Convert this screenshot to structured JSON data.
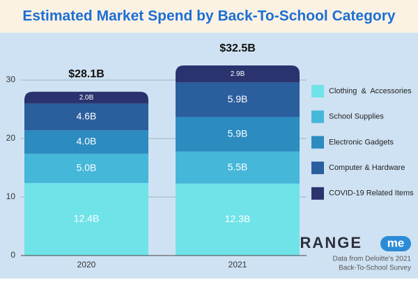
{
  "chart_data": {
    "type": "stacked-bar",
    "title": "Estimated Market Spend by Back-To-School Category",
    "categories": [
      "2020",
      "2021"
    ],
    "series": [
      {
        "name": "Clothing  &  Accessories",
        "color": "#6fe3e8",
        "values": [
          12.4,
          12.3
        ],
        "value_labels": [
          "12.4B",
          "12.3B"
        ]
      },
      {
        "name": "School Supplies",
        "color": "#45b7d9",
        "values": [
          5.0,
          5.5
        ],
        "value_labels": [
          "5.0B",
          "5.5B"
        ]
      },
      {
        "name": "Electronic Gadgets",
        "color": "#2c8bbf",
        "values": [
          4.0,
          5.9
        ],
        "value_labels": [
          "4.0B",
          "5.9B"
        ]
      },
      {
        "name": "Computer & Hardware",
        "color": "#2a5e9d",
        "values": [
          4.6,
          5.9
        ],
        "value_labels": [
          "4.6B",
          "5.9B"
        ]
      },
      {
        "name": "COVID-19 Related Items",
        "color": "#2b336e",
        "values": [
          2.0,
          2.9
        ],
        "value_labels": [
          "2.0B",
          "2.9B"
        ]
      }
    ],
    "totals": {
      "values": [
        28.1,
        32.5
      ],
      "value_labels": [
        "$28.1B",
        "$32.5B"
      ]
    },
    "ylim": [
      0,
      35
    ],
    "yticks": [
      0,
      10,
      20,
      30
    ],
    "grid": true,
    "legend": "right",
    "logo": {
      "text": "RANGE",
      "badge": "me"
    },
    "source_note": [
      "Data from Deloitte's 2021",
      "Back-To-School Survey"
    ]
  }
}
